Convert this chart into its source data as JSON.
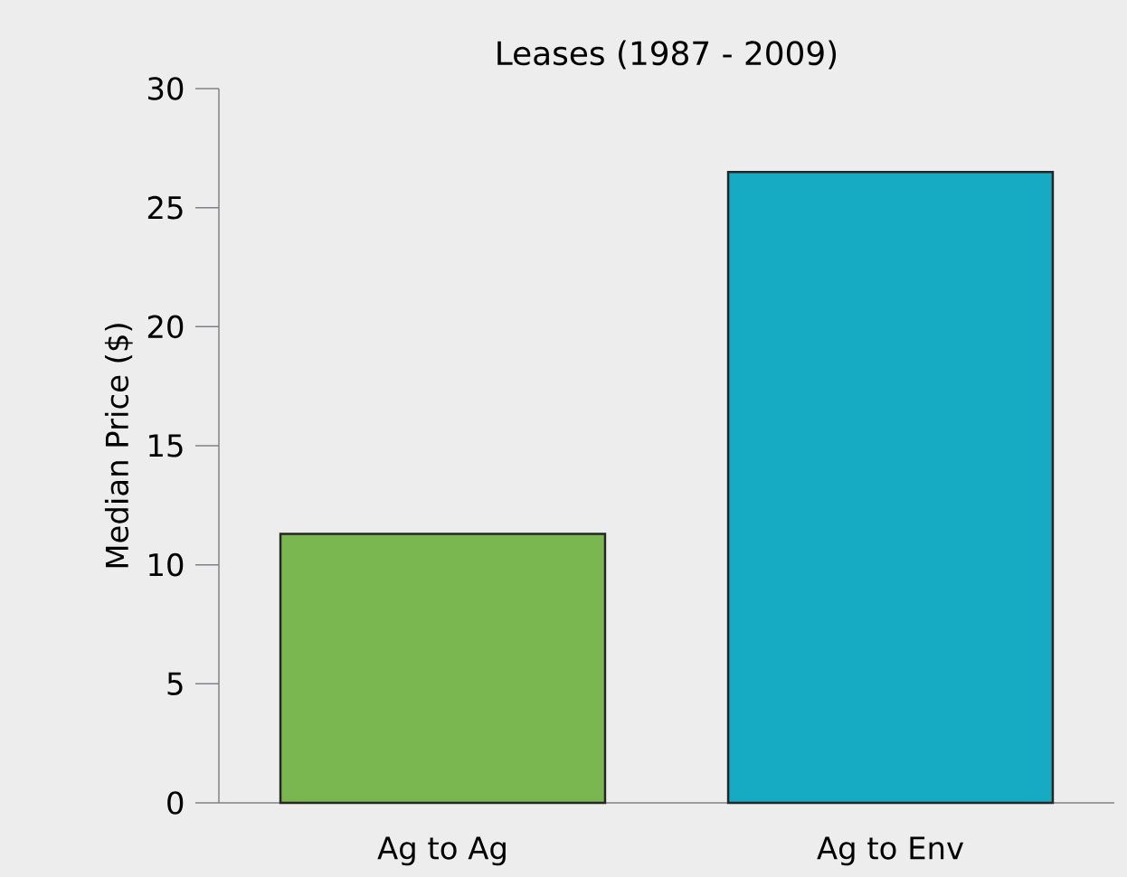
{
  "chart_data": {
    "type": "bar",
    "title": "Leases (1987 - 2009)",
    "ylabel": "Median Price ($)",
    "categories": [
      "Ag to Ag",
      "Ag to Env"
    ],
    "values": [
      11.3,
      26.5
    ],
    "colors": [
      "#7bb750",
      "#17abc3"
    ],
    "ylim": [
      0,
      30
    ],
    "yticks": [
      0,
      5,
      10,
      15,
      20,
      25,
      30
    ]
  }
}
